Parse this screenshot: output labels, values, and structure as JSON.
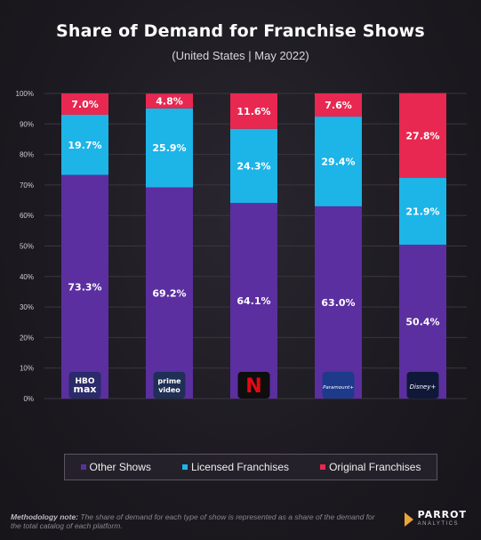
{
  "title": "Share of Demand for Franchise Shows",
  "subtitle": "(United States | May 2022)",
  "legend": {
    "items": [
      {
        "label": "Other Shows",
        "color": "#5b2fa0"
      },
      {
        "label": "Licensed Franchises",
        "color": "#1db4e8"
      },
      {
        "label": "Original Franchises",
        "color": "#e82850"
      }
    ]
  },
  "footnote": {
    "label": "Methodology note:",
    "text": "The share of demand for each type of show is represented as a share of the demand for the total catalog of each platform."
  },
  "brand": {
    "name": "PARROT",
    "sub": "ANALYTICS"
  },
  "platform_logos": [
    {
      "icon": "hbo-max-logo",
      "lines": [
        "HBO",
        "max"
      ]
    },
    {
      "icon": "prime-video-logo",
      "lines": [
        "prime",
        "video"
      ]
    },
    {
      "icon": "netflix-logo",
      "lines": [
        "N"
      ]
    },
    {
      "icon": "paramount-plus-logo",
      "lines": [
        "Paramount+"
      ]
    },
    {
      "icon": "disney-plus-logo",
      "lines": [
        "Disney+"
      ]
    }
  ],
  "chart_data": {
    "type": "bar",
    "stacked": true,
    "title": "Share of Demand for Franchise Shows",
    "subtitle": "(United States | May 2022)",
    "categories": [
      "HBO Max",
      "Prime Video",
      "Netflix",
      "Paramount+",
      "Disney+"
    ],
    "series": [
      {
        "name": "Other Shows",
        "color": "#5b2fa0",
        "values": [
          73.3,
          69.2,
          64.1,
          63.0,
          50.4
        ],
        "labels": [
          "73.3%",
          "69.2%",
          "64.1%",
          "63.0%",
          "50.4%"
        ]
      },
      {
        "name": "Licensed Franchises",
        "color": "#1db4e8",
        "values": [
          19.7,
          25.9,
          24.3,
          29.4,
          21.9
        ],
        "labels": [
          "19.7%",
          "25.9%",
          "24.3%",
          "29.4%",
          "21.9%"
        ]
      },
      {
        "name": "Original Franchises",
        "color": "#e82850",
        "values": [
          7.0,
          4.8,
          11.6,
          7.6,
          27.8
        ],
        "labels": [
          "7.0%",
          "4.8%",
          "11.6%",
          "7.6%",
          "27.8%"
        ]
      }
    ],
    "ylim": [
      0,
      100
    ],
    "yticks": [
      "0%",
      "10%",
      "20%",
      "30%",
      "40%",
      "50%",
      "60%",
      "70%",
      "80%",
      "90%",
      "100%"
    ],
    "grid": true,
    "legend_position": "bottom"
  }
}
